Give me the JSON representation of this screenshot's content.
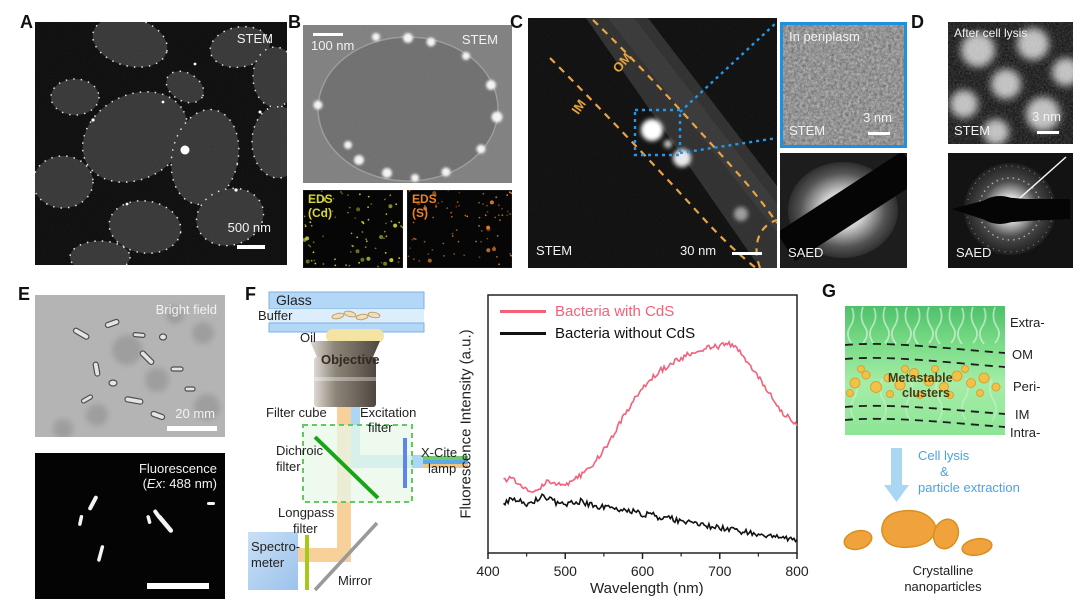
{
  "figure": {
    "panels": {
      "A": {
        "letter": "A",
        "technique": "STEM",
        "scalebar": "500 nm"
      },
      "B": {
        "letter": "B",
        "technique": "STEM",
        "scalebar": "100 nm",
        "eds_left_line1": "EDS",
        "eds_left_line2": "(Cd)",
        "eds_right_line1": "EDS",
        "eds_right_line2": "(S)"
      },
      "C": {
        "letter": "C",
        "technique": "STEM",
        "scalebar": "30 nm",
        "om": "OM",
        "im": "IM",
        "inset_title": "In periplasm",
        "inset_technique": "STEM",
        "inset_scalebar": "3 nm",
        "saed": "SAED"
      },
      "D": {
        "letter": "D",
        "title": "After cell lysis",
        "technique": "STEM",
        "scalebar": "3 nm",
        "saed": "SAED"
      },
      "E": {
        "letter": "E",
        "top_label": "Bright field",
        "top_scalebar": "20 mm",
        "bottom_label_line1": "Fluorescence",
        "bottom_label_pre": "(",
        "bottom_label_ex": "Ex",
        "bottom_label_post": ": 488 nm)"
      },
      "F": {
        "letter": "F",
        "labels": {
          "glass": "Glass",
          "buffer": "Buffer",
          "oil": "Oil",
          "objective": "Objective",
          "filter_cube": "Filter cube",
          "excitation_line1": "Excitation",
          "excitation_line2": "filter",
          "dichroic_line1": "Dichroic",
          "dichroic_line2": "filter",
          "xcite_line1": "X-Cite",
          "xcite_line2": "lamp",
          "longpass_line1": "Longpass",
          "longpass_line2": "filter",
          "spectrometer_line1": "Spectro-",
          "spectrometer_line2": "meter",
          "mirror": "Mirror"
        }
      },
      "G": {
        "letter": "G",
        "membrane_labels": [
          "Extra-",
          "OM",
          "Peri-",
          "IM",
          "Intra-"
        ],
        "cluster_label_line1": "Metastable",
        "cluster_label_line2": "clusters",
        "arrow_line1": "Cell lysis",
        "arrow_line2": "&",
        "arrow_line3": "particle extraction",
        "product_line1": "Crystalline",
        "product_line2": "nanoparticles"
      }
    }
  },
  "chart_data": {
    "type": "line",
    "title": "",
    "xlabel": "Wavelength (nm)",
    "ylabel": "Fluorescence Intensity (a.u.)",
    "xlim": [
      400,
      800
    ],
    "xticks": [
      400,
      500,
      600,
      700,
      800
    ],
    "minor_xticks": [
      450,
      550,
      650,
      750
    ],
    "ylim": [
      0,
      1
    ],
    "yticks_labeled": false,
    "grid": false,
    "legend_position": "top-left",
    "x": [
      420,
      430,
      440,
      450,
      460,
      470,
      480,
      490,
      500,
      510,
      520,
      530,
      540,
      550,
      560,
      570,
      580,
      590,
      600,
      610,
      620,
      630,
      640,
      650,
      660,
      670,
      680,
      690,
      700,
      710,
      720,
      730,
      740,
      750,
      760,
      770,
      780,
      790,
      800
    ],
    "series": [
      {
        "name": "Bacteria with CdS",
        "color": "#f4607a",
        "values": [
          0.28,
          0.29,
          0.26,
          0.25,
          0.24,
          0.26,
          0.28,
          0.27,
          0.26,
          0.28,
          0.3,
          0.33,
          0.36,
          0.4,
          0.45,
          0.5,
          0.55,
          0.6,
          0.64,
          0.67,
          0.7,
          0.72,
          0.74,
          0.75,
          0.77,
          0.78,
          0.79,
          0.8,
          0.8,
          0.81,
          0.8,
          0.76,
          0.72,
          0.68,
          0.64,
          0.6,
          0.55,
          0.52,
          0.5
        ]
      },
      {
        "name": "Bacteria without CdS",
        "color": "#111111",
        "values": [
          0.19,
          0.21,
          0.2,
          0.19,
          0.2,
          0.22,
          0.21,
          0.19,
          0.19,
          0.2,
          0.2,
          0.19,
          0.18,
          0.18,
          0.17,
          0.17,
          0.16,
          0.16,
          0.15,
          0.15,
          0.14,
          0.14,
          0.13,
          0.12,
          0.12,
          0.11,
          0.11,
          0.1,
          0.1,
          0.09,
          0.09,
          0.08,
          0.08,
          0.075,
          0.07,
          0.065,
          0.06,
          0.055,
          0.05
        ]
      }
    ]
  },
  "colors": {
    "accent_pink": "#f4607a",
    "curve_black": "#111111",
    "membrane_dash_orange": "#e8a23c",
    "highlight_blue": "#1e94e8",
    "eds_cd_yellow": "#d6d63a",
    "eds_s_orange": "#e8832a",
    "diagram_blue_text": "#4aa3e8",
    "nanoparticle_orange": "#f0a33c"
  }
}
